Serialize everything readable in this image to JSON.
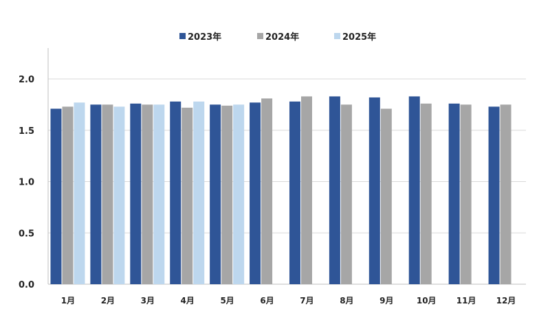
{
  "chart_data": {
    "type": "bar",
    "title": "",
    "xlabel": "",
    "ylabel": "",
    "ylim": [
      0,
      2.0
    ],
    "yticks": [
      "0.0",
      "0.5",
      "1.0",
      "1.5",
      "2.0"
    ],
    "ytick_values": [
      0,
      0.5,
      1.0,
      1.5,
      2.0
    ],
    "grid": true,
    "legend_position": "top",
    "categories": [
      "1月",
      "2月",
      "3月",
      "4月",
      "5月",
      "6月",
      "7月",
      "8月",
      "9月",
      "10月",
      "11月",
      "12月"
    ],
    "series": [
      {
        "name": "2023年",
        "color": "#2f5597",
        "values": [
          1.71,
          1.75,
          1.76,
          1.78,
          1.75,
          1.77,
          1.78,
          1.83,
          1.82,
          1.83,
          1.76,
          1.73
        ]
      },
      {
        "name": "2024年",
        "color": "#a6a6a6",
        "values": [
          1.73,
          1.75,
          1.75,
          1.72,
          1.74,
          1.81,
          1.83,
          1.75,
          1.71,
          1.76,
          1.75,
          1.75
        ]
      },
      {
        "name": "2025年",
        "color": "#bdd7ee",
        "values": [
          1.77,
          1.73,
          1.75,
          1.78,
          1.75,
          null,
          null,
          null,
          null,
          null,
          null,
          null
        ]
      }
    ]
  }
}
